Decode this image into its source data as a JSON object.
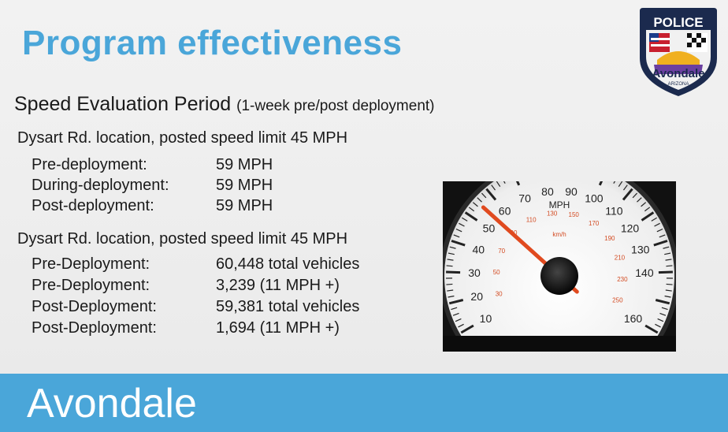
{
  "slide": {
    "title": "Program effectiveness",
    "heading": "Speed Evaluation Period",
    "heading_note": "(1-week pre/post deployment)"
  },
  "section1": {
    "location": "Dysart Rd. location, posted speed limit 45 MPH",
    "rows": [
      {
        "label": "Pre-deployment:",
        "value": "59 MPH"
      },
      {
        "label": "During-deployment:",
        "value": "59 MPH"
      },
      {
        "label": "Post-deployment:",
        "value": "59 MPH"
      }
    ]
  },
  "section2": {
    "location": "Dysart Rd. location, posted speed limit 45 MPH",
    "rows": [
      {
        "label": "Pre-Deployment:",
        "value": "60,448 total vehicles"
      },
      {
        "label": "Pre-Deployment:",
        "value": "3,239 (11 MPH +)"
      },
      {
        "label": "Post-Deployment:",
        "value": "59,381 total vehicles"
      },
      {
        "label": "Post-Deployment:",
        "value": "1,694 (11 MPH +)"
      }
    ]
  },
  "logo": {
    "top_text": "POLICE",
    "bottom_text": "Avondale",
    "state_text": "ARIZONA"
  },
  "speedometer": {
    "unit_mph": "MPH",
    "unit_kmh": "km/h",
    "mph_labels": [
      "10",
      "20",
      "30",
      "40",
      "50",
      "60",
      "70",
      "80",
      "90",
      "100",
      "110",
      "120",
      "130",
      "140",
      "160"
    ],
    "kmh_labels": [
      "10",
      "30",
      "50",
      "70",
      "90",
      "110",
      "130",
      "150",
      "170",
      "190",
      "210",
      "230",
      "250"
    ],
    "needle_mph": 55
  },
  "footer": {
    "brand": "Avondale"
  },
  "colors": {
    "accent_blue": "#4aa6d9",
    "title_blue": "#4aa6d9",
    "needle": "#e04a1f",
    "badge_navy": "#1b2a4e"
  }
}
